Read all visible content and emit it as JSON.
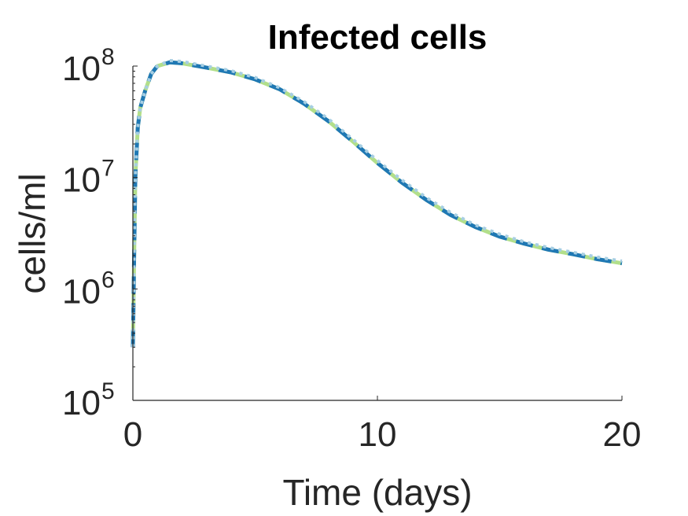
{
  "chart_data": {
    "type": "line",
    "title": "Infected cells",
    "xlabel": "Time (days)",
    "ylabel": "cells/ml",
    "xlim": [
      0,
      20
    ],
    "ylim": [
      100000,
      100000000
    ],
    "yscale": "log",
    "grid": false,
    "xticks": [
      0,
      10,
      20
    ],
    "xtick_labels": [
      "0",
      "10",
      "20"
    ],
    "yticks": [
      100000,
      1000000,
      10000000,
      100000000
    ],
    "ytick_base": "10",
    "ytick_exponents": [
      "5",
      "6",
      "7",
      "8"
    ],
    "series": [
      {
        "color": "#b2df8a",
        "style": "solid",
        "x": [
          0,
          0.05,
          0.1,
          0.2,
          0.3,
          0.5,
          0.75,
          1,
          1.5,
          2,
          3,
          4,
          5,
          6,
          7,
          8,
          9,
          10,
          11,
          12,
          13,
          14,
          15,
          16,
          17,
          18,
          19,
          20
        ],
        "y": [
          300000,
          2000000,
          10000000,
          28000000,
          42000000,
          60000000,
          85000000,
          100000000,
          108000000,
          106000000,
          97000000,
          88000000,
          76000000,
          62000000,
          46000000,
          32000000,
          21000000,
          13500000,
          9000000,
          6300000,
          4600000,
          3600000,
          2950000,
          2550000,
          2250000,
          2050000,
          1850000,
          1700000
        ]
      },
      {
        "color": "#1f78b4",
        "style": "dashed",
        "x": [
          0,
          0.05,
          0.1,
          0.2,
          0.3,
          0.5,
          0.75,
          1,
          1.5,
          2,
          3,
          4,
          5,
          6,
          7,
          8,
          9,
          10,
          11,
          12,
          13,
          14,
          15,
          16,
          17,
          18,
          19,
          20
        ],
        "y": [
          300000,
          2000000,
          10000000,
          28000000,
          42000000,
          60000000,
          85000000,
          100000000,
          108000000,
          106000000,
          97000000,
          88000000,
          76000000,
          62000000,
          46000000,
          32000000,
          21000000,
          13500000,
          9000000,
          6300000,
          4600000,
          3600000,
          2950000,
          2550000,
          2250000,
          2050000,
          1850000,
          1700000
        ]
      },
      {
        "color": "#a6cee3",
        "style": "dotted",
        "x": [
          0,
          0.05,
          0.1,
          0.2,
          0.3,
          0.5,
          0.75,
          1,
          1.5,
          2,
          3,
          4,
          5,
          6,
          7,
          8,
          9,
          10,
          11,
          12,
          13,
          14,
          15,
          16,
          17,
          18,
          19,
          20
        ],
        "y": [
          300000,
          2000000,
          10000000,
          28000000,
          42000000,
          60000000,
          85000000,
          100000000,
          112000000,
          110000000,
          100000000,
          91000000,
          79000000,
          64000000,
          48000000,
          33500000,
          22000000,
          14200000,
          9500000,
          6600000,
          4850000,
          3750000,
          3100000,
          2650000,
          2350000,
          2130000,
          1930000,
          1780000
        ]
      }
    ]
  }
}
